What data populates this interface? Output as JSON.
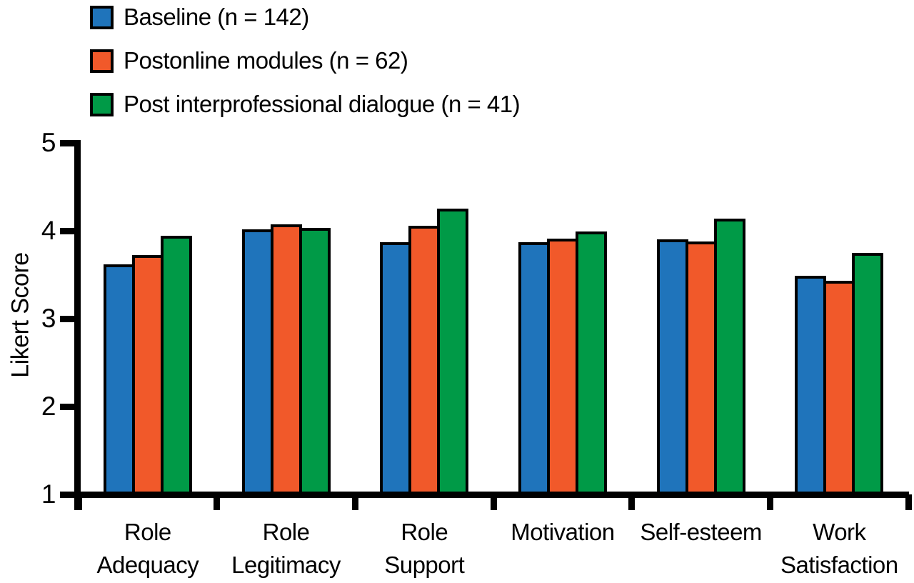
{
  "chart_data": {
    "type": "bar",
    "title": "",
    "xlabel": "",
    "ylabel": "Likert Score",
    "ylim": [
      1,
      5
    ],
    "yticks": [
      1,
      2,
      3,
      4,
      5
    ],
    "grid": false,
    "legend_position": "top-left",
    "bar_border_color": "#000000",
    "categories": [
      [
        "Role",
        "Adequacy"
      ],
      [
        "Role",
        "Legitimacy"
      ],
      [
        "Role",
        "Support"
      ],
      [
        "Motivation"
      ],
      [
        "Self-esteem"
      ],
      [
        "Work",
        "Satisfaction"
      ]
    ],
    "series": [
      {
        "name": "Baseline (n = 142)",
        "color": "#1F74BB",
        "values": [
          3.62,
          4.02,
          3.87,
          3.87,
          3.9,
          3.49
        ]
      },
      {
        "name": "Postonline modules (n = 62)",
        "color": "#F1592A",
        "values": [
          3.72,
          4.07,
          4.06,
          3.91,
          3.88,
          3.43
        ]
      },
      {
        "name": "Post interprofessional dialogue (n = 41)",
        "color": "#009A47",
        "values": [
          3.94,
          4.03,
          4.25,
          3.99,
          4.14,
          3.75
        ]
      }
    ]
  }
}
